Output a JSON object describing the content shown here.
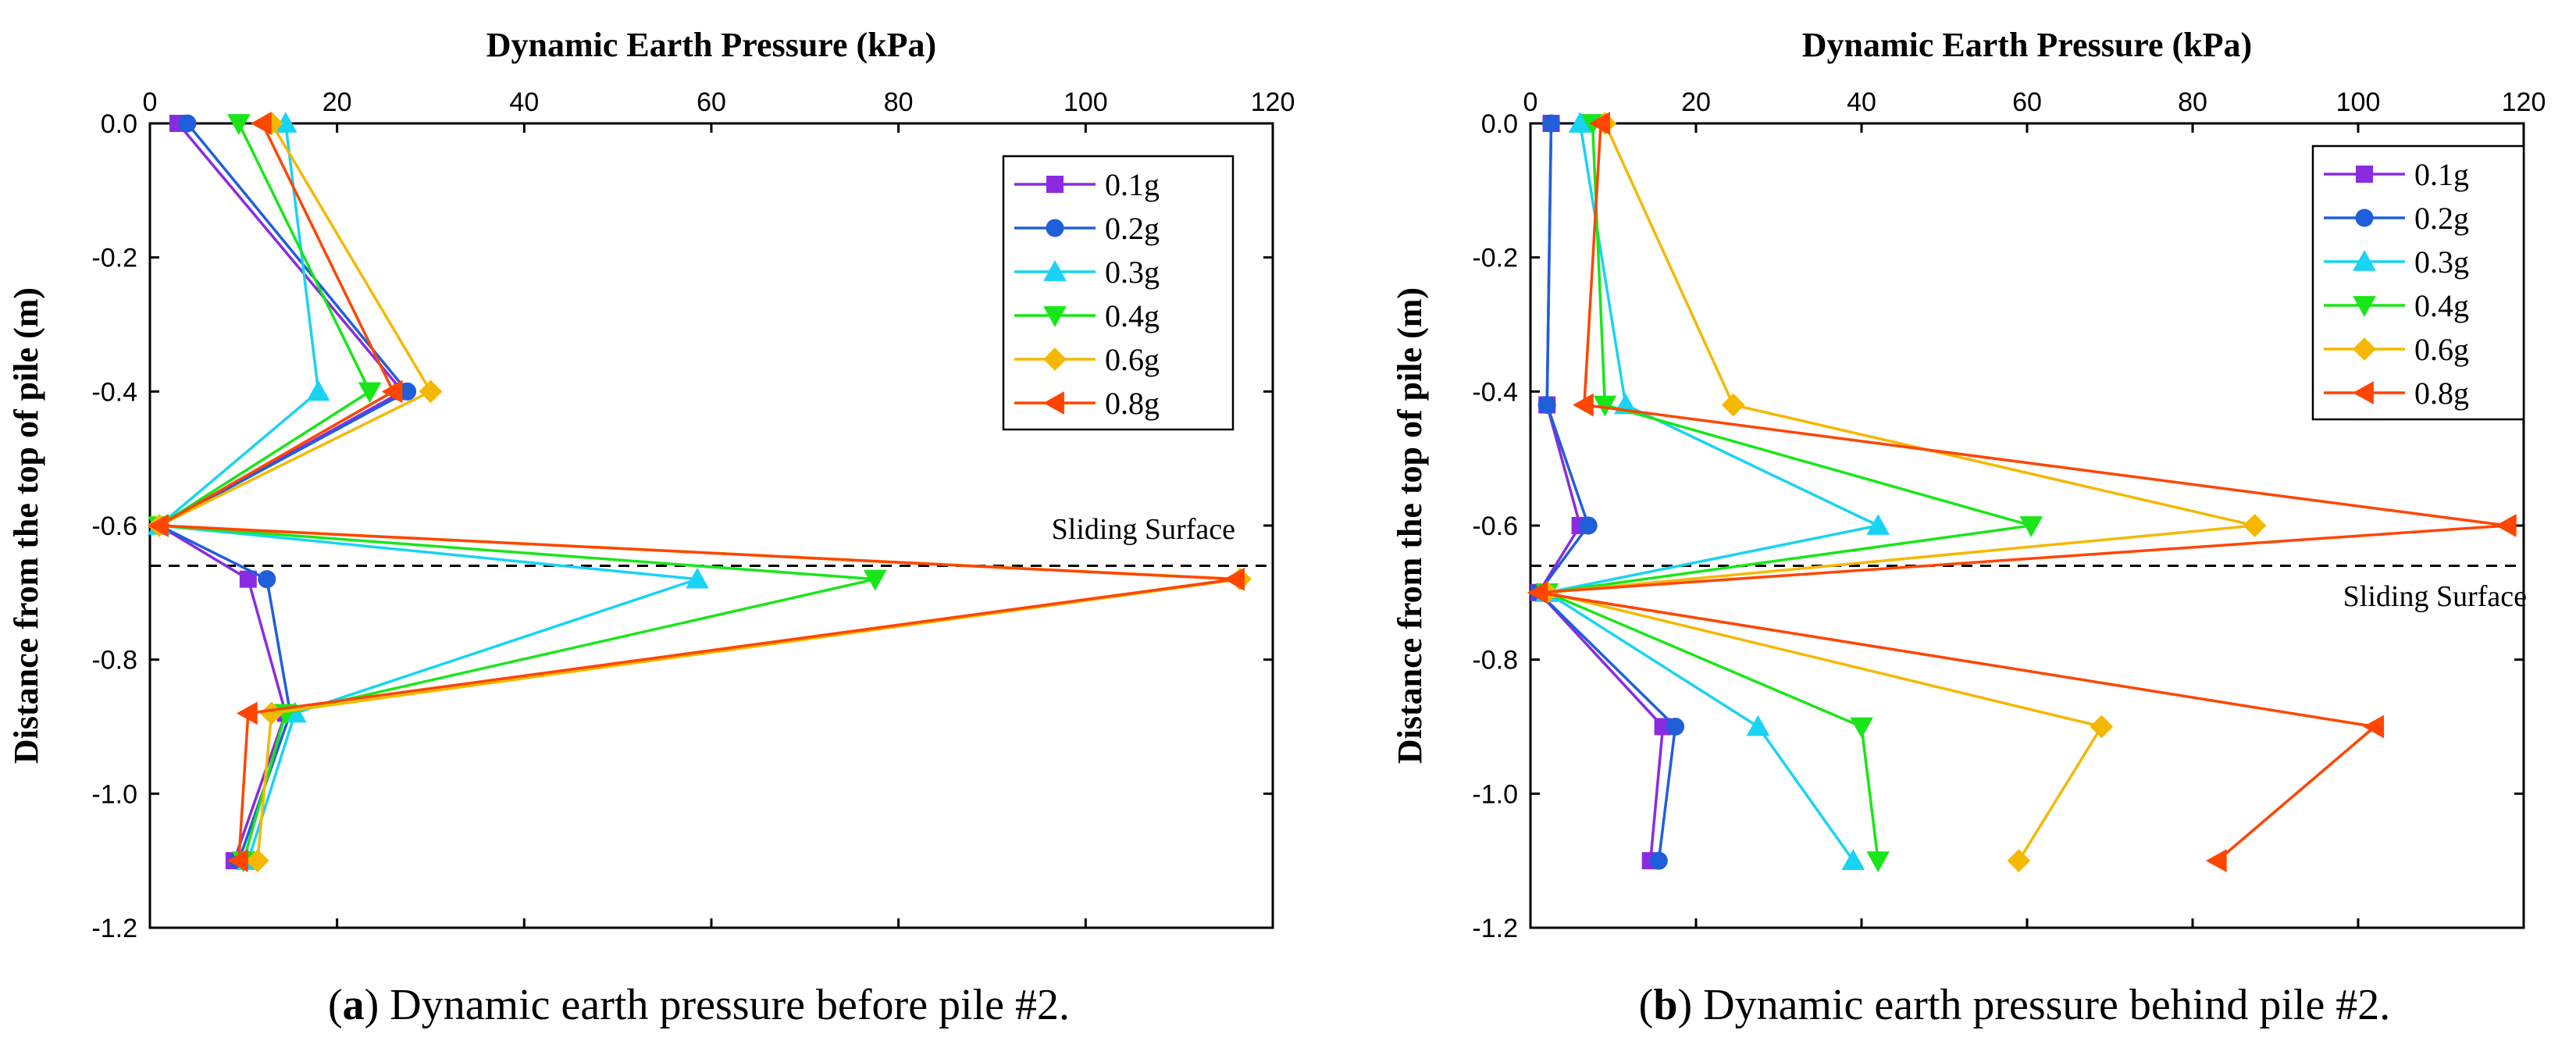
{
  "chart_data": [
    {
      "id": "a",
      "type": "line",
      "title": "",
      "xlabel": "Dynamic Earth Pressure (kPa)",
      "ylabel": "Distance from the top of pile (m)",
      "xlim": [
        0,
        120
      ],
      "ylim": [
        -1.2,
        0.0
      ],
      "xticks": [
        0,
        20,
        40,
        60,
        80,
        100,
        120
      ],
      "yticks": [
        0.0,
        -0.2,
        -0.4,
        -0.6,
        -0.8,
        -1.0,
        -1.2
      ],
      "ytick_labels": [
        "0.0",
        "-0.2",
        "-0.4",
        "-0.6",
        "-0.8",
        "-1.0",
        "-1.2"
      ],
      "grid": false,
      "legend_position": "top-right",
      "sliding_surface": {
        "label": "Sliding Surface",
        "y": -0.66
      },
      "caption": {
        "letter": "a",
        "text": ") Dynamic earth pressure before pile #2."
      },
      "series": [
        {
          "name": "0.1g",
          "color": "#8a2be2",
          "marker": "square",
          "points": [
            [
              3,
              0.0
            ],
            [
              27,
              -0.4
            ],
            [
              1,
              -0.6
            ],
            [
              10.5,
              -0.68
            ],
            [
              14.5,
              -0.88
            ],
            [
              9,
              -1.1
            ]
          ]
        },
        {
          "name": "0.2g",
          "color": "#1f5fd9",
          "marker": "circle",
          "points": [
            [
              4,
              0.0
            ],
            [
              27.5,
              -0.4
            ],
            [
              1,
              -0.6
            ],
            [
              12.5,
              -0.68
            ],
            [
              15,
              -0.88
            ],
            [
              9.5,
              -1.1
            ]
          ]
        },
        {
          "name": "0.3g",
          "color": "#19d3f3",
          "marker": "triangle-up",
          "points": [
            [
              14.5,
              0.0
            ],
            [
              18,
              -0.4
            ],
            [
              1,
              -0.6
            ],
            [
              58.5,
              -0.68
            ],
            [
              15.5,
              -0.88
            ],
            [
              10.5,
              -1.1
            ]
          ]
        },
        {
          "name": "0.4g",
          "color": "#19e619",
          "marker": "triangle-down",
          "points": [
            [
              9.5,
              0.0
            ],
            [
              23.5,
              -0.4
            ],
            [
              1,
              -0.6
            ],
            [
              77.5,
              -0.68
            ],
            [
              14.5,
              -0.88
            ],
            [
              10,
              -1.1
            ]
          ]
        },
        {
          "name": "0.6g",
          "color": "#f5b800",
          "marker": "diamond",
          "points": [
            [
              13,
              0.0
            ],
            [
              30,
              -0.4
            ],
            [
              1,
              -0.6
            ],
            [
              116.5,
              -0.68
            ],
            [
              13,
              -0.88
            ],
            [
              11.5,
              -1.1
            ]
          ]
        },
        {
          "name": "0.8g",
          "color": "#ff4500",
          "marker": "triangle-left",
          "points": [
            [
              12,
              0.0
            ],
            [
              26,
              -0.4
            ],
            [
              1,
              -0.6
            ],
            [
              116,
              -0.68
            ],
            [
              10.5,
              -0.88
            ],
            [
              9.5,
              -1.1
            ]
          ]
        }
      ]
    },
    {
      "id": "b",
      "type": "line",
      "title": "",
      "xlabel": "Dynamic Earth Pressure (kPa)",
      "ylabel": "Distance from the top of pile (m)",
      "xlim": [
        0,
        120
      ],
      "ylim": [
        -1.2,
        0.0
      ],
      "xticks": [
        0,
        20,
        40,
        60,
        80,
        100,
        120
      ],
      "yticks": [
        0.0,
        -0.2,
        -0.4,
        -0.6,
        -0.8,
        -1.0,
        -1.2
      ],
      "ytick_labels": [
        "0.0",
        "-0.2",
        "-0.4",
        "-0.6",
        "-0.8",
        "-1.0",
        "-1.2"
      ],
      "grid": false,
      "legend_position": "top-right",
      "sliding_surface": {
        "label": "Sliding Surface",
        "y": -0.66
      },
      "caption": {
        "letter": "b",
        "text": ") Dynamic earth pressure behind pile #2."
      },
      "series": [
        {
          "name": "0.1g",
          "color": "#8a2be2",
          "marker": "square",
          "points": [
            [
              2.5,
              0.0
            ],
            [
              2,
              -0.42
            ],
            [
              6,
              -0.6
            ],
            [
              1,
              -0.7
            ],
            [
              16,
              -0.9
            ],
            [
              14.5,
              -1.1
            ]
          ]
        },
        {
          "name": "0.2g",
          "color": "#1f5fd9",
          "marker": "circle",
          "points": [
            [
              2.5,
              0.0
            ],
            [
              2,
              -0.42
            ],
            [
              7,
              -0.6
            ],
            [
              1,
              -0.7
            ],
            [
              17.5,
              -0.9
            ],
            [
              15.5,
              -1.1
            ]
          ]
        },
        {
          "name": "0.3g",
          "color": "#19d3f3",
          "marker": "triangle-up",
          "points": [
            [
              6,
              0.0
            ],
            [
              11.5,
              -0.42
            ],
            [
              42,
              -0.6
            ],
            [
              2,
              -0.7
            ],
            [
              27.5,
              -0.9
            ],
            [
              39,
              -1.1
            ]
          ]
        },
        {
          "name": "0.4g",
          "color": "#19e619",
          "marker": "triangle-down",
          "points": [
            [
              7.5,
              0.0
            ],
            [
              9,
              -0.42
            ],
            [
              60.5,
              -0.6
            ],
            [
              2,
              -0.7
            ],
            [
              40,
              -0.9
            ],
            [
              42,
              -1.1
            ]
          ]
        },
        {
          "name": "0.6g",
          "color": "#f5b800",
          "marker": "diamond",
          "points": [
            [
              9,
              0.0
            ],
            [
              24.5,
              -0.42
            ],
            [
              87.5,
              -0.6
            ],
            [
              2,
              -0.7
            ],
            [
              69,
              -0.9
            ],
            [
              59,
              -1.1
            ]
          ]
        },
        {
          "name": "0.8g",
          "color": "#ff4500",
          "marker": "triangle-left",
          "points": [
            [
              8.5,
              0.0
            ],
            [
              6.5,
              -0.42
            ],
            [
              118,
              -0.6
            ],
            [
              1,
              -0.7
            ],
            [
              102,
              -0.9
            ],
            [
              83,
              -1.1
            ]
          ]
        }
      ]
    }
  ]
}
